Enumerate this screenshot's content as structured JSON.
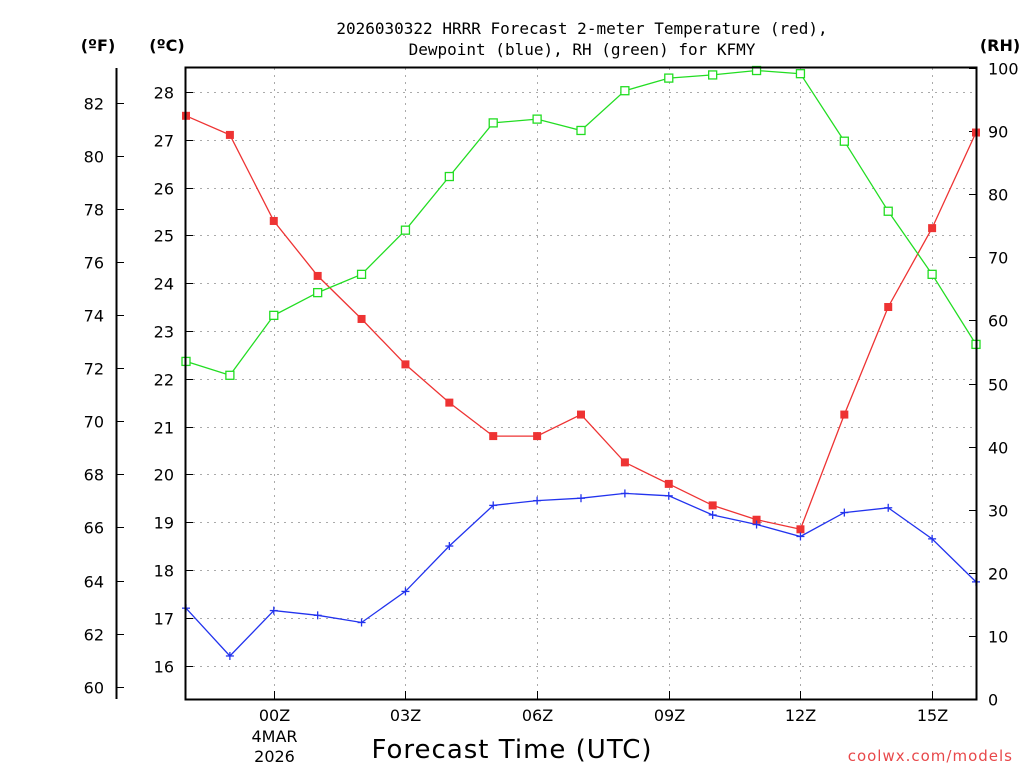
{
  "chart_data": {
    "type": "line",
    "title_line1": "2026030322 HRRR Forecast 2-meter Temperature (red),",
    "title_line2": "Dewpoint (blue), RH (green) for KFMY",
    "xlabel": "Forecast Time (UTC)",
    "credit": "coolwx.com/models",
    "units": {
      "fahrenheit": "(ºF)",
      "celsius": "(ºC)",
      "rh": "(RH)"
    },
    "x_hours": [
      -2,
      -1,
      0,
      1,
      2,
      3,
      4,
      5,
      6,
      7,
      8,
      9,
      10,
      11,
      12,
      13,
      14,
      15,
      16
    ],
    "xlim": [
      -2,
      16
    ],
    "x_ticks": [
      {
        "hour": 0,
        "label": "00Z",
        "sub1": "4MAR",
        "sub2": "2026"
      },
      {
        "hour": 3,
        "label": "03Z"
      },
      {
        "hour": 6,
        "label": "06Z"
      },
      {
        "hour": 9,
        "label": "09Z"
      },
      {
        "hour": 12,
        "label": "12Z"
      },
      {
        "hour": 15,
        "label": "15Z"
      }
    ],
    "celsius_range": [
      15.3,
      28.5
    ],
    "celsius_ticks": [
      "16",
      "17",
      "18",
      "19",
      "20",
      "21",
      "22",
      "23",
      "24",
      "25",
      "26",
      "27",
      "28"
    ],
    "fahrenheit_ticks": [
      "60",
      "62",
      "64",
      "66",
      "68",
      "70",
      "72",
      "74",
      "76",
      "78",
      "80",
      "82"
    ],
    "rh_range": [
      0,
      100
    ],
    "rh_ticks": [
      "0",
      "10",
      "20",
      "30",
      "40",
      "50",
      "60",
      "70",
      "80",
      "90",
      "100"
    ],
    "series": [
      {
        "name": "Temperature",
        "color": "#ee3333",
        "marker": "filled-square",
        "axis": "celsius",
        "values": [
          27.5,
          27.1,
          25.3,
          24.15,
          23.25,
          22.3,
          21.5,
          20.8,
          20.8,
          21.25,
          20.25,
          19.8,
          19.35,
          19.05,
          18.85,
          21.25,
          23.5,
          25.15,
          27.15
        ]
      },
      {
        "name": "Dewpoint",
        "color": "#2233ee",
        "marker": "plus",
        "axis": "celsius",
        "values": [
          17.2,
          16.2,
          17.15,
          17.05,
          16.9,
          17.55,
          18.5,
          19.35,
          19.45,
          19.5,
          19.6,
          19.55,
          19.15,
          18.95,
          18.7,
          19.2,
          19.3,
          18.65,
          17.75
        ]
      },
      {
        "name": "RH",
        "color": "#22dd22",
        "marker": "open-square",
        "axis": "rh",
        "values": [
          53.5,
          51.3,
          60.8,
          64.4,
          67.3,
          74.3,
          82.8,
          91.3,
          91.9,
          90.1,
          96.4,
          98.4,
          98.9,
          99.6,
          99.1,
          88.4,
          77.3,
          67.3,
          56.2
        ]
      }
    ]
  }
}
